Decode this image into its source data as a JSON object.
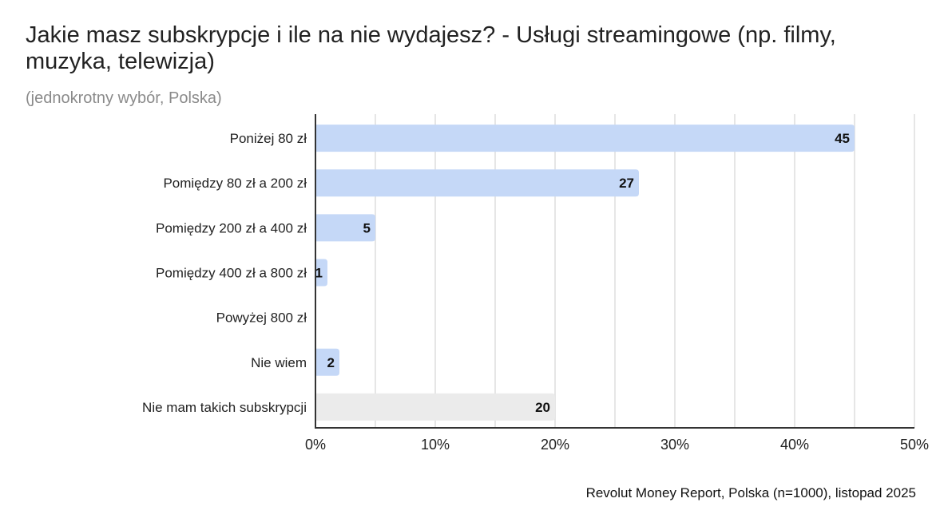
{
  "chart_data": {
    "type": "bar",
    "orientation": "horizontal",
    "title": "Jakie masz subskrypcje i ile na nie wydajesz? - Usługi streamingowe (np. filmy, muzyka, telewizja)",
    "subtitle": "(jednokrotny wybór, Polska)",
    "source": "Revolut Money Report, Polska (n=1000), listopad 2025",
    "categories": [
      "Poniżej 80 zł",
      "Pomiędzy 80 zł a 200 zł",
      "Pomiędzy 200 zł a 400 zł",
      "Pomiędzy 400 zł a 800 zł",
      "Powyżej 800 zł",
      "Nie wiem",
      "Nie mam takich subskrypcji"
    ],
    "values": [
      45,
      27,
      5,
      1,
      0,
      2,
      20
    ],
    "data_labels": [
      "45",
      "27",
      "5",
      "1",
      "",
      "2",
      "20"
    ],
    "bar_colors": [
      "#c5d8f7",
      "#c5d8f7",
      "#c5d8f7",
      "#c5d8f7",
      "#c5d8f7",
      "#c5d8f7",
      "#ebebeb"
    ],
    "xlim": [
      0,
      50
    ],
    "xticks": [
      0,
      10,
      20,
      30,
      40,
      50
    ],
    "xtick_labels": [
      "0%",
      "10%",
      "20%",
      "30%",
      "40%",
      "50%"
    ],
    "grid": true,
    "xlabel": "",
    "ylabel": ""
  }
}
